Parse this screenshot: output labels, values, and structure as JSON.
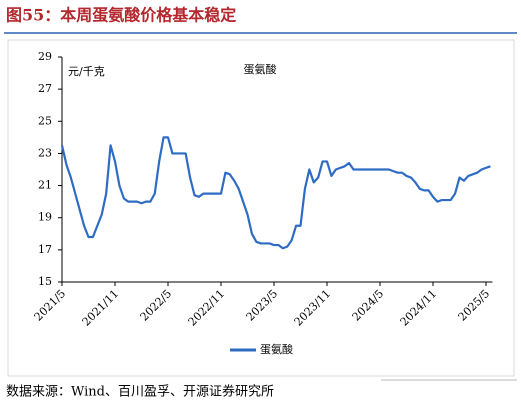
{
  "header": {
    "title": "图55：本周蛋氨酸价格基本稳定"
  },
  "chart_data": {
    "type": "line",
    "title": "蛋氨酸",
    "y_label": "元/千克",
    "categories": [
      "2021/5",
      null,
      null,
      null,
      null,
      null,
      null,
      null,
      null,
      null,
      null,
      null,
      "2021/11",
      null,
      null,
      null,
      null,
      null,
      null,
      null,
      null,
      null,
      null,
      null,
      "2022/5",
      null,
      null,
      null,
      null,
      null,
      null,
      null,
      null,
      null,
      null,
      null,
      "2022/11",
      null,
      null,
      null,
      null,
      null,
      null,
      null,
      null,
      null,
      null,
      null,
      "2023/5",
      null,
      null,
      null,
      null,
      null,
      null,
      null,
      null,
      null,
      null,
      null,
      "2023/11",
      null,
      null,
      null,
      null,
      null,
      null,
      null,
      null,
      null,
      null,
      null,
      "2024/5",
      null,
      null,
      null,
      null,
      null,
      null,
      null,
      null,
      null,
      null,
      null,
      "2024/11",
      null,
      null,
      null,
      null,
      null,
      null,
      null,
      null,
      null,
      null,
      null,
      "2025/5",
      null
    ],
    "series": [
      {
        "name": "蛋氨酸",
        "color": "#2e6cc4",
        "values": [
          23.5,
          22.3,
          21.5,
          20.5,
          19.5,
          18.5,
          17.8,
          17.8,
          18.5,
          19.2,
          20.5,
          23.5,
          22.5,
          21,
          20.2,
          20,
          20,
          20,
          19.9,
          20,
          20,
          20.5,
          22.5,
          24,
          24,
          23,
          23,
          23,
          23,
          21.5,
          20.4,
          20.3,
          20.5,
          20.5,
          20.5,
          20.5,
          20.5,
          21.8,
          21.7,
          21.3,
          20.8,
          20,
          19.2,
          18,
          17.5,
          17.4,
          17.4,
          17.4,
          17.3,
          17.3,
          17.1,
          17.2,
          17.6,
          18.5,
          18.5,
          20.8,
          22,
          21.2,
          21.5,
          22.5,
          22.5,
          21.6,
          22,
          22.1,
          22.2,
          22.4,
          22,
          22,
          22,
          22,
          22,
          22,
          22,
          22,
          22,
          21.9,
          21.8,
          21.8,
          21.6,
          21.5,
          21.2,
          20.8,
          20.7,
          20.7,
          20.3,
          20,
          20.1,
          20.1,
          20.1,
          20.5,
          21.5,
          21.3,
          21.6,
          21.7,
          21.8,
          22,
          22.1,
          22.2
        ]
      }
    ],
    "ylim": [
      15,
      29
    ],
    "yticks": [
      15,
      17,
      19,
      21,
      23,
      25,
      27,
      29
    ],
    "legend": "bottom"
  },
  "footer": {
    "source": "数据来源：Wind、百川盈孚、开源证券研究所"
  }
}
